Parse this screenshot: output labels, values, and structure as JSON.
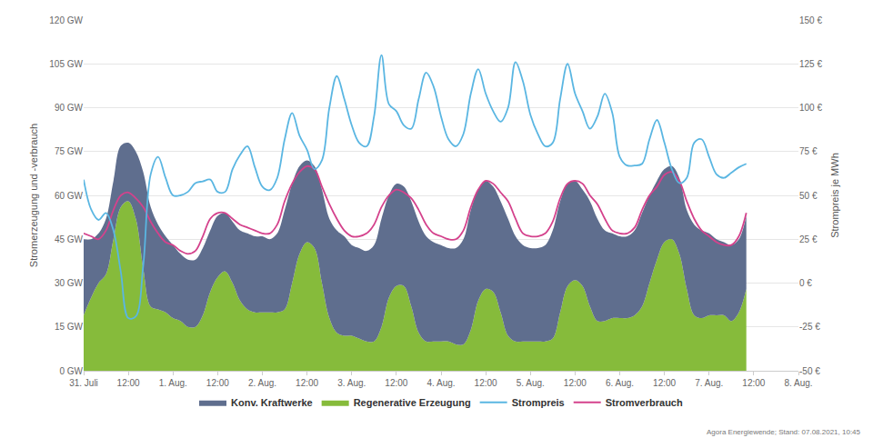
{
  "chart_data": {
    "type": "area",
    "stacked": true,
    "grid": true,
    "legend": "bottom",
    "ylabel": "Stromerzeugung und -verbrauch",
    "y2label": "Strompreis je MWh",
    "source": "Agora Energiewende; Stand: 07.08.2021, 10:45",
    "x": [
      0,
      2,
      4,
      6,
      8,
      10,
      12,
      14,
      16,
      18,
      20,
      22,
      24,
      26,
      28,
      30,
      32,
      34,
      36,
      38,
      40,
      42,
      44,
      46,
      48,
      50,
      52,
      54,
      56,
      58,
      60,
      62,
      64,
      66,
      68,
      70,
      72,
      74,
      76,
      78,
      80,
      82,
      84,
      86,
      88,
      90,
      92,
      94,
      96,
      98,
      100,
      102,
      104,
      106,
      108,
      110,
      112,
      114,
      116,
      118,
      120,
      122,
      124,
      126,
      128,
      130,
      132,
      134,
      136,
      138,
      140,
      142,
      144,
      146,
      148,
      150,
      152,
      154,
      156,
      158,
      160,
      162,
      164,
      166,
      168,
      170,
      172,
      174,
      176,
      178
    ],
    "xlim": [
      0,
      192
    ],
    "xticks": [
      {
        "value": 0,
        "label": "31. Juli"
      },
      {
        "value": 12,
        "label": "12:00"
      },
      {
        "value": 24,
        "label": "1. Aug."
      },
      {
        "value": 36,
        "label": "12:00"
      },
      {
        "value": 48,
        "label": "2. Aug."
      },
      {
        "value": 60,
        "label": "12:00"
      },
      {
        "value": 72,
        "label": "3. Aug."
      },
      {
        "value": 84,
        "label": "12:00"
      },
      {
        "value": 96,
        "label": "4. Aug."
      },
      {
        "value": 108,
        "label": "12:00"
      },
      {
        "value": 120,
        "label": "5. Aug."
      },
      {
        "value": 132,
        "label": "12:00"
      },
      {
        "value": 144,
        "label": "6. Aug."
      },
      {
        "value": 156,
        "label": "12:00"
      },
      {
        "value": 168,
        "label": "7. Aug."
      },
      {
        "value": 180,
        "label": "12:00"
      },
      {
        "value": 192,
        "label": "8. Aug."
      }
    ],
    "ylim": [
      0,
      120
    ],
    "yticks": [
      {
        "value": 0,
        "label": "0 GW"
      },
      {
        "value": 15,
        "label": "15 GW"
      },
      {
        "value": 30,
        "label": "30 GW"
      },
      {
        "value": 45,
        "label": "45 GW"
      },
      {
        "value": 60,
        "label": "60 GW"
      },
      {
        "value": 75,
        "label": "75 GW"
      },
      {
        "value": 90,
        "label": "90 GW"
      },
      {
        "value": 105,
        "label": "105 GW"
      },
      {
        "value": 120,
        "label": "120 GW"
      }
    ],
    "y2lim": [
      -50,
      150
    ],
    "y2ticks": [
      {
        "value": -50,
        "label": "-50 €"
      },
      {
        "value": -25,
        "label": "-25 €"
      },
      {
        "value": 0,
        "label": "0 €"
      },
      {
        "value": 25,
        "label": "25 €"
      },
      {
        "value": 50,
        "label": "50 €"
      },
      {
        "value": 75,
        "label": "75 €"
      },
      {
        "value": 100,
        "label": "100 €"
      },
      {
        "value": 125,
        "label": "125 €"
      },
      {
        "value": 150,
        "label": "150 €"
      }
    ],
    "series": [
      {
        "name": "Konv. Kraftwerke",
        "type": "area",
        "color": "#5f6e8e",
        "values": [
          26,
          20,
          17,
          19,
          20,
          21,
          20,
          23,
          33,
          34,
          29,
          26,
          25,
          23,
          23,
          23,
          23,
          21,
          21,
          20,
          21,
          24,
          26,
          26,
          26,
          25,
          27,
          34,
          34,
          30,
          28,
          28,
          32,
          34,
          35,
          34,
          31,
          31,
          31,
          33,
          37,
          35,
          35,
          34,
          36,
          38,
          36,
          34,
          33,
          32,
          33,
          36,
          41,
          38,
          37,
          36,
          38,
          40,
          36,
          33,
          32,
          32,
          33,
          37,
          38,
          35,
          34,
          33,
          36,
          35,
          31,
          29,
          28,
          28,
          29,
          32,
          30,
          27,
          25,
          25,
          26,
          27,
          31,
          30,
          28,
          26,
          25,
          26,
          25,
          25
        ]
      },
      {
        "name": "Regenerative Erzeugung",
        "type": "area",
        "color": "#86bb3b",
        "values": [
          19,
          25,
          30,
          33,
          45,
          56,
          58,
          52,
          35,
          22,
          21,
          20,
          18,
          17,
          15,
          15,
          19,
          27,
          32,
          34,
          30,
          24,
          21,
          20,
          20,
          20,
          20,
          21,
          30,
          40,
          44,
          42,
          30,
          18,
          13,
          12,
          12,
          11,
          10,
          10,
          15,
          25,
          29,
          29,
          22,
          13,
          10,
          10,
          10,
          10,
          9,
          9,
          14,
          24,
          28,
          27,
          20,
          12,
          10,
          10,
          10,
          10,
          10,
          11,
          20,
          29,
          31,
          29,
          22,
          17,
          17,
          18,
          18,
          18,
          19,
          22,
          30,
          38,
          44,
          45,
          40,
          28,
          19,
          18,
          19,
          19,
          19,
          17,
          20,
          28
        ]
      },
      {
        "name": "Strompreis",
        "type": "line",
        "axis": "y2",
        "color": "#5ab6e2",
        "values": [
          59,
          42,
          36,
          40,
          30,
          6,
          -20,
          -19,
          10,
          62,
          72,
          60,
          50,
          50,
          52,
          57,
          58,
          59,
          52,
          52,
          65,
          73,
          78,
          66,
          55,
          53,
          60,
          82,
          97,
          84,
          76,
          65,
          70,
          100,
          118,
          105,
          90,
          80,
          78,
          95,
          130,
          102,
          98,
          90,
          88,
          105,
          120,
          112,
          95,
          82,
          78,
          85,
          108,
          122,
          108,
          98,
          92,
          100,
          126,
          115,
          96,
          85,
          78,
          80,
          105,
          125,
          108,
          98,
          88,
          95,
          108,
          97,
          72,
          67,
          67,
          68,
          82,
          93,
          80,
          65,
          57,
          60,
          80,
          82,
          72,
          62,
          60,
          63,
          66,
          68
        ]
      },
      {
        "name": "Stromverbrauch",
        "type": "line",
        "color": "#d4428c",
        "values": [
          47,
          46,
          45,
          48,
          55,
          60,
          61,
          59,
          56,
          51,
          47,
          44,
          43,
          41,
          40,
          41,
          46,
          52,
          54,
          54,
          52,
          50,
          49,
          48,
          47,
          47,
          50,
          58,
          64,
          68,
          70,
          69,
          63,
          57,
          52,
          48,
          46,
          46,
          47,
          50,
          56,
          60,
          62,
          61,
          59,
          55,
          50,
          47,
          46,
          45,
          45,
          48,
          56,
          62,
          65,
          64,
          61,
          58,
          52,
          47,
          46,
          46,
          47,
          51,
          59,
          64,
          65,
          64,
          60,
          57,
          52,
          48,
          47,
          47,
          49,
          55,
          60,
          63,
          67,
          68,
          65,
          58,
          52,
          48,
          46,
          44,
          43,
          43,
          46,
          54
        ]
      }
    ]
  }
}
